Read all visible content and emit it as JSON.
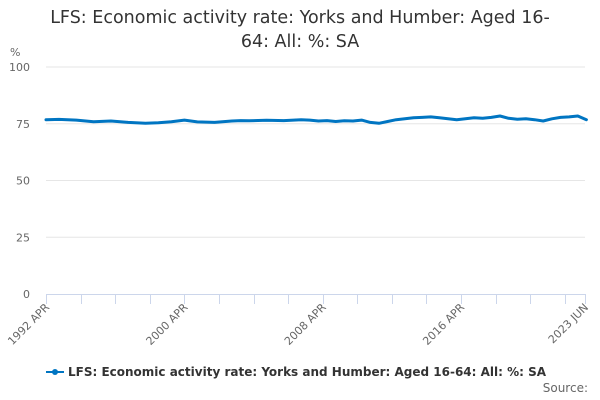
{
  "title_line1": "LFS: Economic activity rate: Yorks and Humber: Aged 16-",
  "title_line2": "64: All: %: SA",
  "y_unit": "%",
  "legend_label": "LFS: Economic activity rate: Yorks and Humber: Aged 16-64: All: %: SA",
  "source_label": "Source:",
  "colors": {
    "series": "#0075c2",
    "grid": "#e6e6e6",
    "axis": "#ccd6eb",
    "text": "#333333",
    "tick_text": "#666666"
  },
  "chart_data": {
    "type": "line",
    "title": "LFS: Economic activity rate: Yorks and Humber: Aged 16-64: All: %: SA",
    "xlabel": "",
    "ylabel": "%",
    "ylim": [
      0,
      100
    ],
    "yticks": [
      0,
      25,
      50,
      75,
      100
    ],
    "xtick_labels": [
      "1992 APR",
      "2000 APR",
      "2008 APR",
      "2016 APR",
      "2023 JUN"
    ],
    "grid": true,
    "legend_position": "bottom",
    "series": [
      {
        "name": "LFS: Economic activity rate: Yorks and Humber: Aged 16-64: All: %: SA",
        "x": [
          1992.25,
          1993.0,
          1994.0,
          1995.0,
          1996.0,
          1997.0,
          1998.0,
          1998.75,
          1999.5,
          2000.25,
          2001.0,
          2002.0,
          2003.0,
          2003.5,
          2004.0,
          2005.0,
          2006.0,
          2007.0,
          2007.5,
          2008.0,
          2008.5,
          2009.0,
          2009.5,
          2010.0,
          2010.5,
          2011.0,
          2011.5,
          2012.0,
          2012.5,
          2013.0,
          2013.5,
          2014.0,
          2014.5,
          2015.0,
          2015.5,
          2016.0,
          2016.5,
          2017.0,
          2017.5,
          2018.0,
          2018.5,
          2019.0,
          2019.5,
          2020.0,
          2020.5,
          2021.0,
          2021.5,
          2022.0,
          2022.5,
          2023.0,
          2023.5
        ],
        "values": [
          76.8,
          76.9,
          76.6,
          75.9,
          76.2,
          75.6,
          75.2,
          75.4,
          75.9,
          76.6,
          75.8,
          75.6,
          76.2,
          76.4,
          76.3,
          76.5,
          76.4,
          76.8,
          76.6,
          76.2,
          76.4,
          76.0,
          76.3,
          76.2,
          76.6,
          75.6,
          75.2,
          76.0,
          76.8,
          77.2,
          77.6,
          77.8,
          78.0,
          77.6,
          77.2,
          76.8,
          77.2,
          77.6,
          77.4,
          77.8,
          78.4,
          77.4,
          77.0,
          77.2,
          76.8,
          76.2,
          77.2,
          77.8,
          78.0,
          78.4,
          76.8
        ]
      }
    ]
  }
}
